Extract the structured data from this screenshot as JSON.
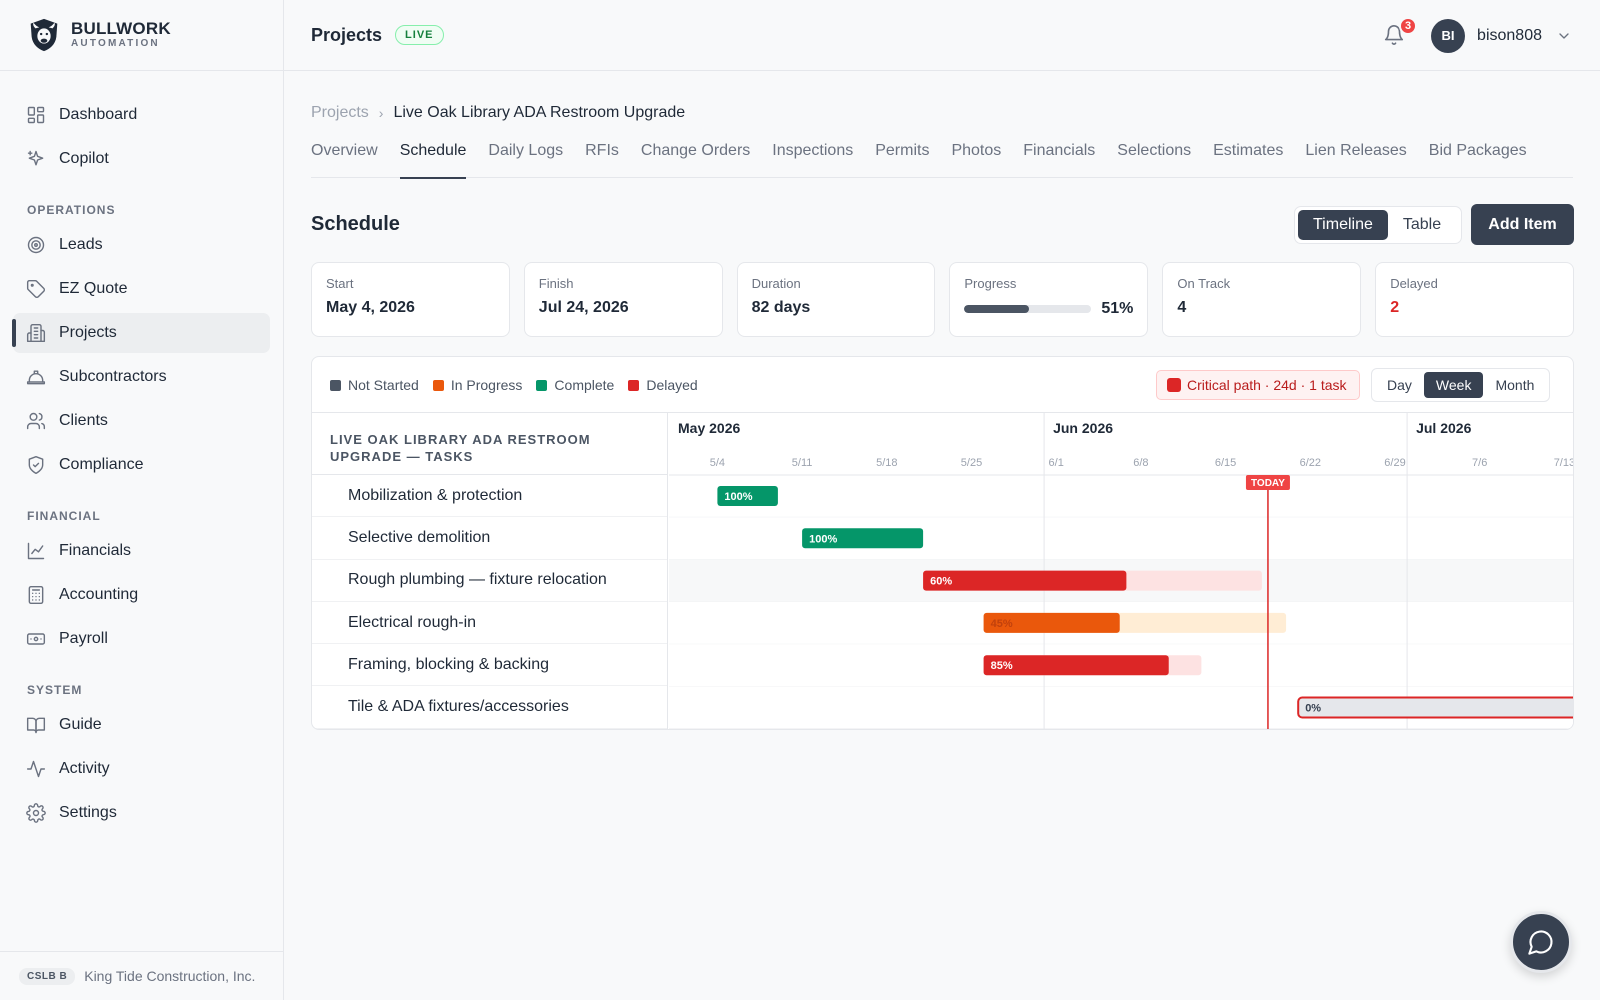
{
  "brand": {
    "name": "BULLWORK",
    "sub": "AUTOMATION"
  },
  "sidebar": {
    "top_items": [
      {
        "label": "Dashboard",
        "icon": "grid-icon"
      },
      {
        "label": "Copilot",
        "icon": "sparkle-icon"
      }
    ],
    "sections": [
      {
        "title": "OPERATIONS",
        "items": [
          {
            "label": "Leads",
            "icon": "target-icon"
          },
          {
            "label": "EZ Quote",
            "icon": "tag-icon"
          },
          {
            "label": "Projects",
            "icon": "building-icon",
            "active": true
          },
          {
            "label": "Subcontractors",
            "icon": "hardhat-icon"
          },
          {
            "label": "Clients",
            "icon": "users-icon"
          },
          {
            "label": "Compliance",
            "icon": "shield-icon"
          }
        ]
      },
      {
        "title": "FINANCIAL",
        "items": [
          {
            "label": "Financials",
            "icon": "chart-line-icon"
          },
          {
            "label": "Accounting",
            "icon": "calculator-icon"
          },
          {
            "label": "Payroll",
            "icon": "banknote-icon"
          }
        ]
      },
      {
        "title": "SYSTEM",
        "items": [
          {
            "label": "Guide",
            "icon": "book-icon"
          },
          {
            "label": "Activity",
            "icon": "pulse-icon"
          },
          {
            "label": "Settings",
            "icon": "gear-icon"
          }
        ]
      }
    ],
    "footer": {
      "license": "CSLB B",
      "company": "King Tide Construction, Inc."
    }
  },
  "topbar": {
    "title": "Projects",
    "badge": "LIVE",
    "notifications": "3",
    "avatar": "BI",
    "username": "bison808"
  },
  "breadcrumb": {
    "root": "Projects",
    "current": "Live Oak Library ADA Restroom Upgrade"
  },
  "tabs": [
    "Overview",
    "Schedule",
    "Daily Logs",
    "RFIs",
    "Change Orders",
    "Inspections",
    "Permits",
    "Photos",
    "Financials",
    "Selections",
    "Estimates",
    "Lien Releases",
    "Bid Packages"
  ],
  "active_tab": "Schedule",
  "schedule": {
    "title": "Schedule",
    "views": [
      "Timeline",
      "Table"
    ],
    "active_view": "Timeline",
    "add_label": "Add Item",
    "stats": {
      "start": {
        "label": "Start",
        "value": "May 4, 2026"
      },
      "finish": {
        "label": "Finish",
        "value": "Jul 24, 2026"
      },
      "duration": {
        "label": "Duration",
        "value": "82 days"
      },
      "progress": {
        "label": "Progress",
        "value": "51%",
        "fraction": 0.51
      },
      "on_track": {
        "label": "On Track",
        "value": "4"
      },
      "delayed": {
        "label": "Delayed",
        "value": "2"
      }
    },
    "legend": [
      {
        "label": "Not Started",
        "color": "#4b5563"
      },
      {
        "label": "In Progress",
        "color": "#ea580c"
      },
      {
        "label": "Complete",
        "color": "#059669"
      },
      {
        "label": "Delayed",
        "color": "#dc2626"
      }
    ],
    "critical_path": "Critical path · 24d · 1 task",
    "scales": [
      "Day",
      "Week",
      "Month"
    ],
    "active_scale": "Week",
    "task_header": "LIVE OAK LIBRARY ADA RESTROOM UPGRADE — TASKS",
    "months": [
      {
        "label": "May 2026",
        "start": "2026-05-01"
      },
      {
        "label": "Jun 2026",
        "start": "2026-06-01"
      },
      {
        "label": "Jul 2026",
        "start": "2026-07-01"
      }
    ],
    "week_ticks": [
      "5/4",
      "5/11",
      "5/18",
      "5/25",
      "6/1",
      "6/8",
      "6/15",
      "6/22",
      "6/29",
      "7/6",
      "7/13"
    ],
    "today_label": "TODAY",
    "today": "2026-06-18"
  },
  "chart_data": {
    "type": "gantt",
    "tasks": [
      {
        "name": "Mobilization & protection",
        "start": "2026-05-04",
        "end": "2026-05-08",
        "progress": 100,
        "label": "100%",
        "status": "Complete"
      },
      {
        "name": "Selective demolition",
        "start": "2026-05-11",
        "end": "2026-05-20",
        "progress": 100,
        "label": "100%",
        "status": "Complete"
      },
      {
        "name": "Rough plumbing — fixture relocation",
        "start": "2026-05-21",
        "end": "2026-06-17",
        "progress": 60,
        "label": "60%",
        "status": "Delayed"
      },
      {
        "name": "Electrical rough-in",
        "start": "2026-05-26",
        "end": "2026-06-19",
        "progress": 45,
        "label": "45%",
        "status": "In Progress"
      },
      {
        "name": "Framing, blocking & backing",
        "start": "2026-05-26",
        "end": "2026-06-12",
        "progress": 85,
        "label": "85%",
        "status": "Delayed"
      },
      {
        "name": "Tile & ADA fixtures/accessories",
        "start": "2026-06-21",
        "end": "2026-07-14",
        "progress": 0,
        "label": "0%",
        "status": "Not Started",
        "critical": true
      }
    ]
  }
}
